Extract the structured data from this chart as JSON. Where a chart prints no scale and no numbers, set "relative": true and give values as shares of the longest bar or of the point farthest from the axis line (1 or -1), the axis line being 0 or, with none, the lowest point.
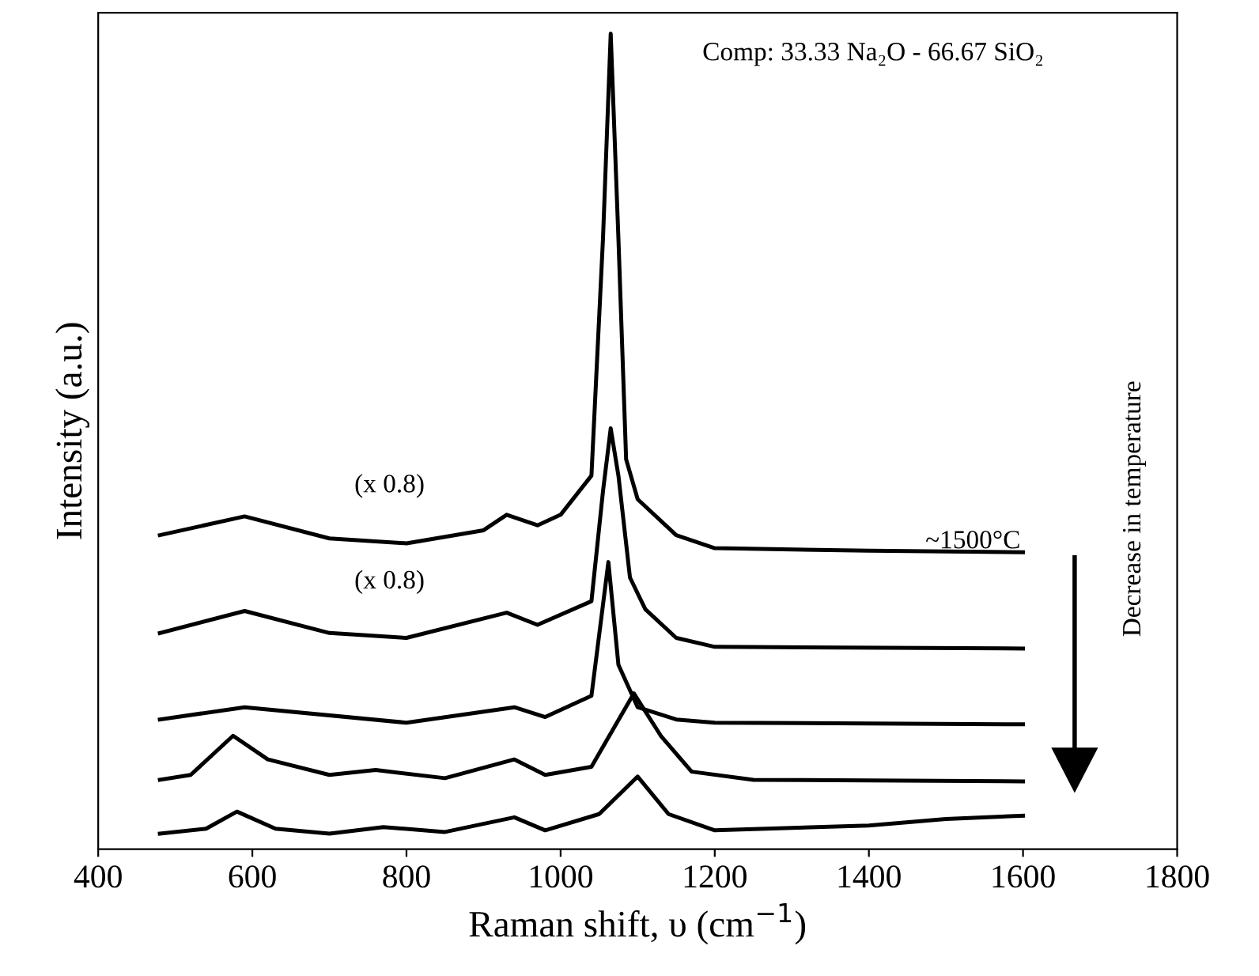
{
  "chart_data": {
    "type": "line",
    "relative": true,
    "xlabel": "Raman shift, υ (cm$^{−1}$)",
    "ylabel": "Intensity (a.u.)",
    "xlim": [
      400,
      1800
    ],
    "xticks": [
      400,
      600,
      800,
      1000,
      1200,
      1400,
      1600,
      1800
    ],
    "grid": false,
    "marker": "none",
    "line_style": "solid",
    "annotations": [
      "Comp: 33.33 Na₂O - 66.67 SiO₂",
      "(x 0.8)",
      "(x 0.8)",
      {
        "text": "~1500°C",
        "x": 1535,
        "y": 0.362
      },
      "Decrease in temperature"
    ],
    "series": [
      {
        "color": "#000000",
        "x": [
          480,
          590,
          700,
          800,
          900,
          930,
          970,
          1000,
          1040,
          1055,
          1065,
          1075,
          1085,
          1100,
          1150,
          1200,
          1400,
          1600
        ],
        "values": [
          0.385,
          0.408,
          0.381,
          0.375,
          0.391,
          0.41,
          0.397,
          0.41,
          0.458,
          0.749,
          1.0,
          0.749,
          0.478,
          0.429,
          0.385,
          0.369,
          0.366,
          0.364
        ]
      },
      {
        "color": "#000000",
        "x": [
          480,
          590,
          700,
          800,
          930,
          970,
          1040,
          1055,
          1065,
          1075,
          1090,
          1110,
          1150,
          1200,
          1600
        ],
        "values": [
          0.265,
          0.292,
          0.265,
          0.259,
          0.29,
          0.275,
          0.304,
          0.439,
          0.516,
          0.458,
          0.333,
          0.294,
          0.259,
          0.248,
          0.246
        ]
      },
      {
        "color": "#000000",
        "x": [
          480,
          590,
          800,
          940,
          980,
          1040,
          1062,
          1075,
          1100,
          1150,
          1200,
          1600
        ],
        "values": [
          0.159,
          0.174,
          0.155,
          0.174,
          0.162,
          0.188,
          0.352,
          0.226,
          0.174,
          0.159,
          0.155,
          0.153
        ]
      },
      {
        "color": "#000000",
        "x": [
          480,
          520,
          575,
          620,
          700,
          760,
          850,
          940,
          980,
          1040,
          1095,
          1130,
          1170,
          1250,
          1600
        ],
        "values": [
          0.085,
          0.091,
          0.139,
          0.11,
          0.091,
          0.097,
          0.087,
          0.11,
          0.091,
          0.101,
          0.191,
          0.139,
          0.095,
          0.085,
          0.083
        ]
      },
      {
        "color": "#000000",
        "x": [
          480,
          540,
          580,
          630,
          700,
          770,
          850,
          940,
          980,
          1050,
          1100,
          1140,
          1200,
          1400,
          1500,
          1600
        ],
        "values": [
          0.019,
          0.025,
          0.046,
          0.025,
          0.019,
          0.027,
          0.021,
          0.039,
          0.023,
          0.043,
          0.089,
          0.043,
          0.023,
          0.029,
          0.037,
          0.041
        ]
      }
    ]
  }
}
